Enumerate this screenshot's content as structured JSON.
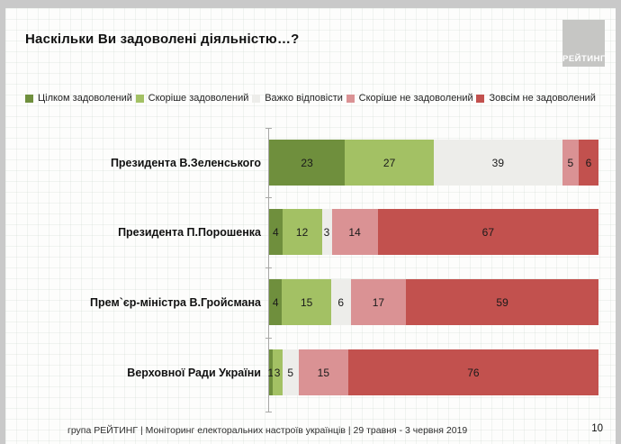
{
  "title": "Наскільки Ви задоволені діяльністю…?",
  "logo_text": "РЕЙТИНГ",
  "chart_data": {
    "type": "bar",
    "orientation": "horizontal",
    "stacked": true,
    "unit": "%",
    "xlim": [
      0,
      100
    ],
    "grid": false,
    "legend_position": "top",
    "value_labels": "inside-center",
    "categories": [
      "Президента В.Зеленського",
      "Президента П.Порошенка",
      "Прем`єр-міністра В.Гройсмана",
      "Верховної Ради України"
    ],
    "series": [
      {
        "name": "Цілком задоволений",
        "color": "#6F8F3D",
        "values": [
          23,
          4,
          4,
          1
        ]
      },
      {
        "name": "Скоріше задоволений",
        "color": "#A3C164",
        "values": [
          27,
          12,
          15,
          3
        ]
      },
      {
        "name": "Важко відповісти",
        "color": "#EDEDEA",
        "values": [
          39,
          3,
          6,
          5
        ]
      },
      {
        "name": "Скоріше не задоволений",
        "color": "#DA9294",
        "values": [
          5,
          14,
          17,
          15
        ]
      },
      {
        "name": "Зовсім не задоволений",
        "color": "#C2514E",
        "values": [
          6,
          67,
          59,
          76
        ]
      }
    ]
  },
  "layout_colors": {
    "slide_background": "#FDFDFC",
    "outer_border": "#C9C9C9",
    "logo_background": "#C6C6C4",
    "axis_line": "#A8A8A6"
  },
  "footer": {
    "source_line": "група РЕЙТИНГ | Моніторинг електоральних настроїв українців | 29 травня - 3 червня 2019",
    "page_number": "10"
  }
}
